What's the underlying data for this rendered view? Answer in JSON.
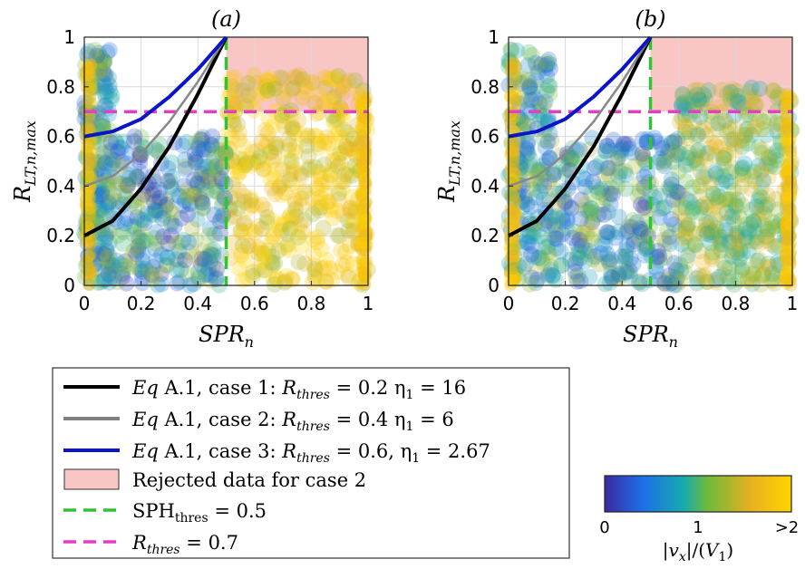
{
  "chart_data": [
    {
      "panel": "a",
      "type": "scatter",
      "title": "(a)",
      "xlabel": "SPR_n",
      "ylabel": "R_{LT,n,max}",
      "xlim": [
        0,
        1
      ],
      "ylim": [
        0,
        1
      ],
      "x_ticks": [
        "0",
        "0.2",
        "0.4",
        "0.6",
        "0.8",
        "1"
      ],
      "y_ticks": [
        "0",
        "0.2",
        "0.4",
        "0.6",
        "0.8",
        "1"
      ],
      "grid": true,
      "rejected_region": {
        "x": [
          0.5,
          1
        ],
        "y": [
          0.7,
          1
        ]
      },
      "reference_lines": {
        "sph_thres_x": 0.5,
        "r_thres_y": 0.7
      },
      "curves": [
        {
          "case": 1,
          "r_thres": 0.2,
          "eta1": 16,
          "color": "#000000",
          "x": [
            0,
            0.1,
            0.2,
            0.3,
            0.4,
            0.5
          ],
          "y": [
            0.2,
            0.26,
            0.39,
            0.56,
            0.77,
            1.0
          ]
        },
        {
          "case": 2,
          "r_thres": 0.4,
          "eta1": 6,
          "color": "#888888",
          "x": [
            0,
            0.1,
            0.2,
            0.3,
            0.4,
            0.5
          ],
          "y": [
            0.4,
            0.44,
            0.53,
            0.66,
            0.82,
            1.0
          ]
        },
        {
          "case": 3,
          "r_thres": 0.6,
          "eta1": 2.67,
          "color": "#0a14c8",
          "x": [
            0,
            0.1,
            0.2,
            0.3,
            0.4,
            0.5
          ],
          "y": [
            0.6,
            0.62,
            0.67,
            0.76,
            0.87,
            1.0
          ]
        }
      ],
      "scatter_description_bands": [
        {
          "x": [
            0,
            0.1
          ],
          "y": [
            0,
            0.95
          ],
          "color_value": 0.5
        },
        {
          "x": [
            0.1,
            0.5
          ],
          "y": [
            0,
            0.6
          ],
          "color_value": 0.2
        },
        {
          "x": [
            0.5,
            1
          ],
          "y": [
            0,
            0.85
          ],
          "color_value": 1.8
        }
      ]
    },
    {
      "panel": "b",
      "type": "scatter",
      "title": "(b)",
      "xlabel": "SPR_n",
      "ylabel": "R_{LT,n,max}",
      "xlim": [
        0,
        1
      ],
      "ylim": [
        0,
        1
      ],
      "x_ticks": [
        "0",
        "0.2",
        "0.4",
        "0.6",
        "0.8",
        "1"
      ],
      "y_ticks": [
        "0",
        "0.2",
        "0.4",
        "0.6",
        "0.8",
        "1"
      ],
      "grid": true,
      "rejected_region": {
        "x": [
          0.5,
          1
        ],
        "y": [
          0.7,
          1
        ]
      },
      "reference_lines": {
        "sph_thres_x": 0.5,
        "r_thres_y": 0.7
      },
      "curves": [
        {
          "case": 1,
          "r_thres": 0.2,
          "eta1": 16,
          "color": "#000000",
          "x": [
            0,
            0.1,
            0.2,
            0.3,
            0.4,
            0.5
          ],
          "y": [
            0.2,
            0.26,
            0.39,
            0.56,
            0.77,
            1.0
          ]
        },
        {
          "case": 2,
          "r_thres": 0.4,
          "eta1": 6,
          "color": "#888888",
          "x": [
            0,
            0.1,
            0.2,
            0.3,
            0.4,
            0.5
          ],
          "y": [
            0.4,
            0.44,
            0.53,
            0.66,
            0.82,
            1.0
          ]
        },
        {
          "case": 3,
          "r_thres": 0.6,
          "eta1": 2.67,
          "color": "#0a14c8",
          "x": [
            0,
            0.1,
            0.2,
            0.3,
            0.4,
            0.5
          ],
          "y": [
            0.6,
            0.62,
            0.67,
            0.76,
            0.87,
            1.0
          ]
        }
      ],
      "scatter_description_bands": [
        {
          "x": [
            0,
            0.15
          ],
          "y": [
            0,
            0.95
          ],
          "color_value": 0.5
        },
        {
          "x": [
            0.15,
            0.6
          ],
          "y": [
            0,
            0.6
          ],
          "color_value": 0.3
        },
        {
          "x": [
            0.6,
            1
          ],
          "y": [
            0,
            0.8
          ],
          "color_value": 1.3
        }
      ]
    }
  ],
  "legend": {
    "entries": [
      {
        "id": "case1",
        "kind": "line",
        "color": "#000000",
        "eq": "Eq",
        "text": " A.1, case 1: ",
        "math": "R",
        "sub": "thres",
        "rest": " = 0.2 η",
        "sub2": "1",
        "rest2": " = 16"
      },
      {
        "id": "case2",
        "kind": "line",
        "color": "#808080",
        "eq": "Eq",
        "text": " A.1, case 2: ",
        "math": "R",
        "sub": "thres",
        "rest": " = 0.4 η",
        "sub2": "1",
        "rest2": " = 6"
      },
      {
        "id": "case3",
        "kind": "line",
        "color": "#0a14c8",
        "eq": "Eq",
        "text": " A.1, case 3: ",
        "math": "R",
        "sub": "thres",
        "rest": " = 0.6, η",
        "sub2": "1",
        "rest2": " = 2.67"
      },
      {
        "id": "rejected",
        "kind": "patch",
        "color": "#f8c6c4",
        "label": "Rejected data for case 2"
      },
      {
        "id": "sph",
        "kind": "dash",
        "color": "#2fc431",
        "label_main": "SPH",
        "label_sub": "thres",
        "label_rest": " = 0.5"
      },
      {
        "id": "rth",
        "kind": "dash",
        "color": "#e73cc4",
        "label_main": "R",
        "label_sub": "thres",
        "label_rest": " = 0.7"
      }
    ]
  },
  "colorbar": {
    "ticks": [
      "0",
      "1",
      ">2"
    ],
    "label": "|v_x|/(V_1)",
    "colors": [
      "#3a2a9e",
      "#1e6ee8",
      "#16a9b0",
      "#6dba3c",
      "#e8b020",
      "#ffd400"
    ]
  }
}
